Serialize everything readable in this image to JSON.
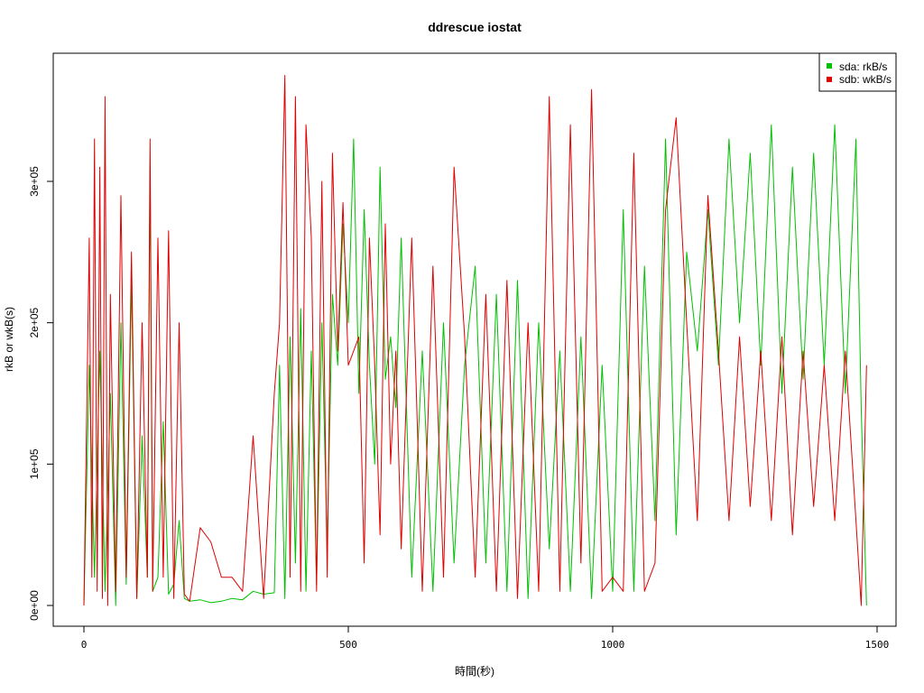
{
  "chart_data": {
    "type": "line",
    "title": "ddrescue iostat",
    "xlabel": "時間(秒)",
    "ylabel": "rkB or wkB(s)",
    "xlim": [
      0,
      1500
    ],
    "ylim": [
      0,
      380000
    ],
    "x_ticks": [
      0,
      500,
      1000,
      1500
    ],
    "x_tick_labels": [
      "0",
      "500",
      "1000",
      "1500"
    ],
    "y_ticks": [
      0,
      100000,
      200000,
      300000
    ],
    "y_tick_labels": [
      "0e+00",
      "1e+05",
      "2e+05",
      "3e+05"
    ],
    "legend_position": "top-right",
    "grid": false,
    "series": [
      {
        "name": "sda: rkB/s",
        "color": "#00c000",
        "x": [
          0,
          10,
          20,
          30,
          40,
          50,
          60,
          70,
          80,
          90,
          100,
          110,
          120,
          125,
          130,
          140,
          150,
          160,
          170,
          180,
          190,
          200,
          220,
          240,
          260,
          280,
          300,
          320,
          340,
          360,
          370,
          380,
          390,
          400,
          410,
          420,
          430,
          440,
          450,
          460,
          470,
          480,
          490,
          500,
          510,
          520,
          530,
          540,
          550,
          560,
          570,
          580,
          590,
          600,
          620,
          640,
          660,
          680,
          700,
          720,
          740,
          760,
          780,
          800,
          820,
          840,
          860,
          880,
          900,
          920,
          940,
          960,
          980,
          1000,
          1020,
          1040,
          1060,
          1080,
          1100,
          1120,
          1140,
          1160,
          1180,
          1200,
          1220,
          1240,
          1260,
          1280,
          1300,
          1320,
          1340,
          1360,
          1380,
          1400,
          1420,
          1440,
          1460,
          1470,
          1480
        ],
        "y": [
          0,
          170000,
          20000,
          180000,
          10000,
          150000,
          0,
          200000,
          15000,
          230000,
          5000,
          120000,
          20000,
          310000,
          10000,
          20000,
          130000,
          8000,
          15000,
          60000,
          5000,
          3000,
          4000,
          2000,
          3000,
          5000,
          4000,
          10000,
          8000,
          9000,
          170000,
          5000,
          190000,
          30000,
          210000,
          10000,
          180000,
          15000,
          200000,
          40000,
          220000,
          170000,
          270000,
          200000,
          330000,
          150000,
          280000,
          170000,
          100000,
          310000,
          160000,
          190000,
          140000,
          260000,
          20000,
          180000,
          10000,
          200000,
          30000,
          170000,
          240000,
          30000,
          220000,
          10000,
          230000,
          5000,
          200000,
          40000,
          180000,
          10000,
          190000,
          5000,
          170000,
          10000,
          280000,
          10000,
          240000,
          60000,
          330000,
          50000,
          250000,
          180000,
          280000,
          170000,
          330000,
          200000,
          320000,
          170000,
          340000,
          150000,
          310000,
          160000,
          320000,
          170000,
          340000,
          150000,
          330000,
          140000,
          0
        ]
      },
      {
        "name": "sdb: wkB/s",
        "color": "#e00000",
        "x": [
          0,
          10,
          15,
          20,
          25,
          30,
          35,
          40,
          45,
          50,
          60,
          70,
          80,
          90,
          100,
          110,
          120,
          125,
          130,
          140,
          150,
          160,
          170,
          180,
          190,
          200,
          220,
          240,
          260,
          280,
          300,
          320,
          340,
          360,
          370,
          380,
          390,
          400,
          410,
          420,
          430,
          440,
          450,
          460,
          470,
          480,
          490,
          500,
          510,
          520,
          530,
          540,
          550,
          560,
          570,
          580,
          590,
          600,
          620,
          640,
          660,
          680,
          700,
          720,
          740,
          760,
          780,
          800,
          820,
          840,
          860,
          880,
          900,
          920,
          940,
          960,
          980,
          1000,
          1020,
          1040,
          1060,
          1080,
          1100,
          1120,
          1140,
          1160,
          1180,
          1200,
          1220,
          1240,
          1260,
          1280,
          1300,
          1320,
          1340,
          1360,
          1380,
          1400,
          1420,
          1440,
          1460,
          1470,
          1480
        ],
        "y": [
          0,
          260000,
          20000,
          330000,
          10000,
          310000,
          5000,
          360000,
          0,
          220000,
          10000,
          290000,
          20000,
          250000,
          5000,
          200000,
          20000,
          330000,
          10000,
          260000,
          20000,
          265000,
          5000,
          200000,
          8000,
          3000,
          55000,
          45000,
          20000,
          20000,
          10000,
          120000,
          5000,
          150000,
          200000,
          375000,
          20000,
          360000,
          10000,
          340000,
          260000,
          10000,
          300000,
          20000,
          320000,
          180000,
          285000,
          170000,
          180000,
          190000,
          30000,
          260000,
          170000,
          50000,
          270000,
          100000,
          180000,
          40000,
          260000,
          10000,
          240000,
          20000,
          310000,
          190000,
          20000,
          220000,
          10000,
          230000,
          5000,
          200000,
          10000,
          360000,
          10000,
          340000,
          30000,
          365000,
          10000,
          20000,
          10000,
          320000,
          10000,
          30000,
          280000,
          345000,
          200000,
          60000,
          290000,
          180000,
          60000,
          190000,
          70000,
          180000,
          60000,
          190000,
          50000,
          180000,
          70000,
          170000,
          60000,
          180000,
          60000,
          0,
          170000
        ]
      }
    ]
  }
}
